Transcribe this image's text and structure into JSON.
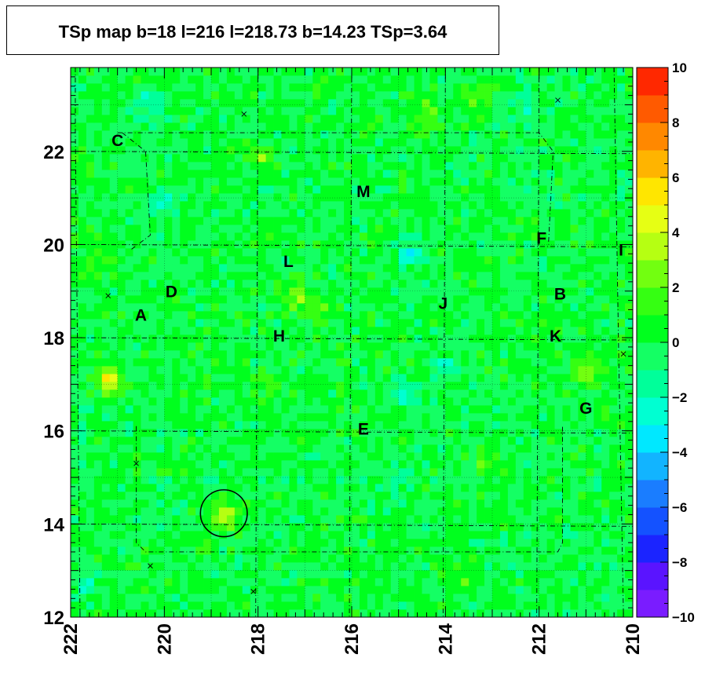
{
  "title": "TSp map b=18 l=216 l=218.73 b=14.23 TSp=3.64",
  "chart_data": {
    "type": "heatmap",
    "title": "TSp map b=18 l=216 l=218.73 b=14.23 TSp=3.64",
    "xlabel": "",
    "ylabel": "",
    "xlim": [
      222,
      210
    ],
    "ylim": [
      12,
      23.8
    ],
    "x_ticks": [
      "222",
      "220",
      "218",
      "216",
      "214",
      "212",
      "210"
    ],
    "y_ticks": [
      "12",
      "14",
      "16",
      "18",
      "20",
      "22"
    ],
    "colorbar": {
      "range": [
        -10,
        10
      ],
      "ticks": [
        "10",
        "8",
        "6",
        "4",
        "2",
        "0",
        "−2",
        "−4",
        "−6",
        "−8",
        "−10"
      ],
      "colors": [
        "#7a1cff",
        "#5a14ff",
        "#1b24ff",
        "#1452ff",
        "#1a7dff",
        "#12b4ff",
        "#00e8ff",
        "#00ffd2",
        "#00ff9a",
        "#14ff64",
        "#00ff1e",
        "#35ff12",
        "#72ff10",
        "#b6ff12",
        "#e6ff14",
        "#ffe600",
        "#ffb400",
        "#ff8800",
        "#ff5a00",
        "#ff2800"
      ]
    },
    "background_level": 0,
    "hotspots": [
      {
        "l": 221.2,
        "b": 17.1,
        "value": 4.5
      },
      {
        "l": 218.7,
        "b": 14.2,
        "value": 3.6
      },
      {
        "l": 217.2,
        "b": 18.9,
        "value": 2.6
      },
      {
        "l": 214.4,
        "b": 22.8,
        "value": 2.4
      },
      {
        "l": 213.3,
        "b": 23.2,
        "value": 2.0
      },
      {
        "l": 218.0,
        "b": 21.9,
        "value": 2.6
      },
      {
        "l": 211.0,
        "b": 17.2,
        "value": 2.3
      },
      {
        "l": 216.7,
        "b": 18.6,
        "value": 1.8
      },
      {
        "l": 213.7,
        "b": 12.8,
        "value": 1.8
      },
      {
        "l": 213.1,
        "b": 15.3,
        "value": 1.5
      },
      {
        "l": 221.5,
        "b": 19.6,
        "value": 1.5
      },
      {
        "l": 217.8,
        "b": 17.0,
        "value": 1.6
      },
      {
        "l": 214.8,
        "b": 19.8,
        "value": -2.5
      },
      {
        "l": 214.0,
        "b": 17.4,
        "value": -2.2
      },
      {
        "l": 214.9,
        "b": 16.8,
        "value": -2.8
      },
      {
        "l": 220.3,
        "b": 23.0,
        "value": -2.0
      },
      {
        "l": 212.2,
        "b": 22.9,
        "value": -1.8
      },
      {
        "l": 220.0,
        "b": 20.9,
        "value": -1.8
      },
      {
        "l": 215.0,
        "b": 15.0,
        "value": -1.5
      },
      {
        "l": 221.7,
        "b": 12.7,
        "value": -1.8
      }
    ],
    "source_labels": [
      {
        "text": "C",
        "l": 221.0,
        "b": 22.25
      },
      {
        "text": "M",
        "l": 215.75,
        "b": 21.15
      },
      {
        "text": "F",
        "l": 211.95,
        "b": 20.15
      },
      {
        "text": "I",
        "l": 210.25,
        "b": 19.9
      },
      {
        "text": "L",
        "l": 217.35,
        "b": 19.65
      },
      {
        "text": "D",
        "l": 219.85,
        "b": 19.0
      },
      {
        "text": "B",
        "l": 211.55,
        "b": 18.95
      },
      {
        "text": "J",
        "l": 214.05,
        "b": 18.75
      },
      {
        "text": "A",
        "l": 220.5,
        "b": 18.5
      },
      {
        "text": "H",
        "l": 217.55,
        "b": 18.05
      },
      {
        "text": "K",
        "l": 211.65,
        "b": 18.05
      },
      {
        "text": "G",
        "l": 211.0,
        "b": 16.5
      },
      {
        "text": "E",
        "l": 215.75,
        "b": 16.05
      }
    ],
    "crosses": [
      {
        "l": 218.3,
        "b": 22.8
      },
      {
        "l": 211.6,
        "b": 23.1
      },
      {
        "l": 221.2,
        "b": 18.9
      },
      {
        "l": 220.6,
        "b": 15.3
      },
      {
        "l": 220.3,
        "b": 13.1
      },
      {
        "l": 218.1,
        "b": 12.55
      },
      {
        "l": 210.2,
        "b": 17.65
      }
    ],
    "circle": {
      "l": 218.73,
      "b": 14.23,
      "radius_deg": 0.5
    },
    "grid": true
  }
}
